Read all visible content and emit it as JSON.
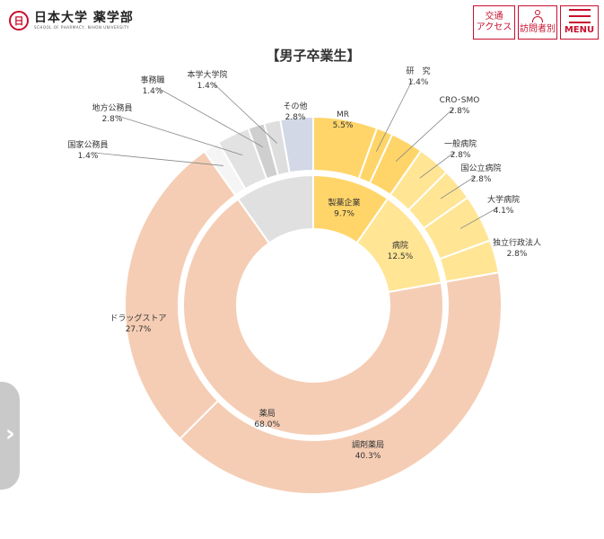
{
  "header": {
    "logo_text": "日本大学 薬学部",
    "logo_sub": "SCHOOL OF PHARMACY, NIHON UNIVERSITY",
    "access_line1": "交通",
    "access_line2": "アクセス",
    "visitor_label": "訪問者別",
    "menu_label": "MENU",
    "icons": {
      "person": "person-icon",
      "menu": "hamburger-icon",
      "side": "chevron-right-icon"
    }
  },
  "colors": {
    "accent": "#c8102e",
    "inner": {
      "薬局": "#f5cdb4",
      "製薬企業": "#ffd569",
      "病院": "#ffe594",
      "other": "#e0e0e0"
    }
  },
  "chart_data": {
    "type": "pie",
    "title": "【男子卒業生】",
    "inner": [
      {
        "label": "製薬企業",
        "value": 9.7
      },
      {
        "label": "病院",
        "value": 12.5
      },
      {
        "label": "薬局",
        "value": 68.0
      }
    ],
    "outer": [
      {
        "label": "MR",
        "value": 5.5,
        "color": "#ffd569"
      },
      {
        "label": "研　究",
        "value": 1.4,
        "color": "#ffd569"
      },
      {
        "label": "CRO･SMO",
        "value": 2.8,
        "color": "#ffd569"
      },
      {
        "label": "一般病院",
        "value": 2.8,
        "color": "#ffe594"
      },
      {
        "label": "国公立病院",
        "value": 2.8,
        "color": "#ffe594"
      },
      {
        "label": "大学病院",
        "value": 4.1,
        "color": "#ffe594"
      },
      {
        "label": "独立行政法人",
        "value": 2.8,
        "color": "#ffe594"
      },
      {
        "label": "調剤薬局",
        "value": 40.3,
        "color": "#f5cdb4"
      },
      {
        "label": "ドラッグストア",
        "value": 27.7,
        "color": "#f5cdb4"
      },
      {
        "label": "国家公務員",
        "value": 1.4,
        "color": "#f5f5f5"
      },
      {
        "label": "地方公務員",
        "value": 2.8,
        "color": "#e2e2e2"
      },
      {
        "label": "事務職",
        "value": 1.4,
        "color": "#cfcfcf"
      },
      {
        "label": "本学大学院",
        "value": 1.4,
        "color": "#dedede"
      },
      {
        "label": "その他",
        "value": 2.8,
        "color": "#d2d8e6"
      }
    ]
  }
}
